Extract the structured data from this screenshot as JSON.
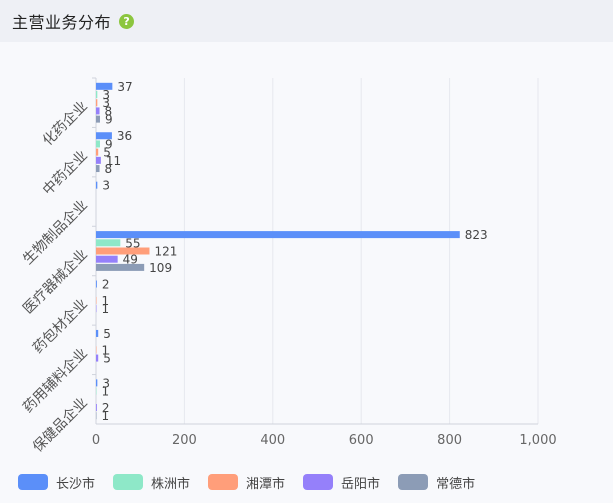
{
  "header": {
    "title": "主营业务分布",
    "help_icon_text": "?"
  },
  "chart_data": {
    "type": "bar",
    "orientation": "horizontal",
    "categories": [
      "化药企业",
      "中药企业",
      "生物制品企业",
      "医疗器械企业",
      "药包材企业",
      "药用辅料企业",
      "保健品企业"
    ],
    "series": [
      {
        "name": "长沙市",
        "color": "#5b8ff9",
        "values": [
          37,
          36,
          3,
          823,
          2,
          5,
          3
        ]
      },
      {
        "name": "株洲市",
        "color": "#8ee8c8",
        "values": [
          3,
          9,
          null,
          55,
          null,
          null,
          1
        ]
      },
      {
        "name": "湘潭市",
        "color": "#ff9e7a",
        "values": [
          3,
          5,
          null,
          121,
          1,
          1,
          null
        ]
      },
      {
        "name": "岳阳市",
        "color": "#9580fa",
        "values": [
          8,
          11,
          null,
          49,
          1,
          5,
          2
        ]
      },
      {
        "name": "常德市",
        "color": "#8c9cb6",
        "values": [
          9,
          8,
          null,
          109,
          null,
          null,
          1
        ]
      }
    ],
    "xlim": [
      0,
      1000
    ],
    "xticks": [
      0,
      200,
      400,
      600,
      800,
      1000
    ],
    "xtick_labels": [
      "0",
      "200",
      "400",
      "600",
      "800",
      "1,000"
    ],
    "grid": true,
    "legend_position": "bottom-left"
  }
}
